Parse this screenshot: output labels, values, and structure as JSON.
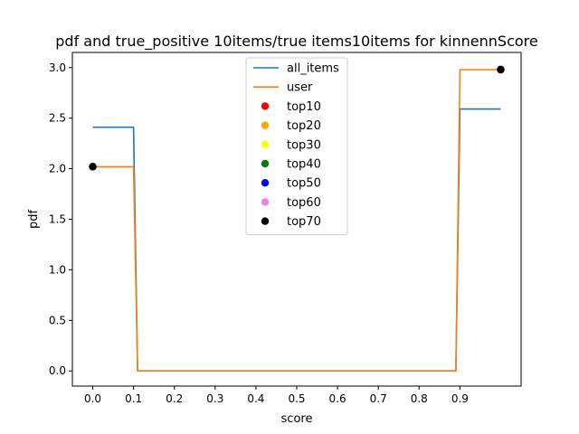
{
  "chart_data": {
    "type": "line",
    "title": "pdf and true_positive 10items/true items10items for kinnennScore",
    "xlabel": "score",
    "ylabel": "pdf",
    "xlim": [
      -0.05,
      1.05
    ],
    "ylim": [
      -0.15,
      3.15
    ],
    "xticks": [
      0.0,
      0.1,
      0.2,
      0.3,
      0.4,
      0.5,
      0.6,
      0.7,
      0.8,
      0.9
    ],
    "xtick_labels": [
      "0.0",
      "0.1",
      "0.2",
      "0.3",
      "0.4",
      "0.5",
      "0.6",
      "0.7",
      "0.8",
      "0.9"
    ],
    "yticks": [
      0.0,
      0.5,
      1.0,
      1.5,
      2.0,
      2.5,
      3.0
    ],
    "ytick_labels": [
      "0.0",
      "0.5",
      "1.0",
      "1.5",
      "2.0",
      "2.5",
      "3.0"
    ],
    "grid": false,
    "legend_position": "top-center",
    "series": [
      {
        "name": "all_items",
        "kind": "line",
        "color": "#1f77b4",
        "x": [
          0.0,
          0.1,
          0.11,
          0.89,
          0.9,
          1.0
        ],
        "y": [
          2.41,
          2.41,
          0.0,
          0.0,
          2.59,
          2.59
        ]
      },
      {
        "name": "user",
        "kind": "line",
        "color": "#ff7f0e",
        "x": [
          0.0,
          0.1,
          0.11,
          0.89,
          0.9,
          1.0
        ],
        "y": [
          2.02,
          2.02,
          0.0,
          0.0,
          2.98,
          2.98
        ]
      },
      {
        "name": "top10",
        "kind": "scatter",
        "color": "#ff0000",
        "x": [
          0.0,
          1.0
        ],
        "y": [
          2.02,
          2.98
        ]
      },
      {
        "name": "top20",
        "kind": "scatter",
        "color": "#ffa500",
        "x": [
          0.0,
          1.0
        ],
        "y": [
          2.02,
          2.98
        ]
      },
      {
        "name": "top30",
        "kind": "scatter",
        "color": "#ffff00",
        "x": [
          0.0,
          1.0
        ],
        "y": [
          2.02,
          2.98
        ]
      },
      {
        "name": "top40",
        "kind": "scatter",
        "color": "#008000",
        "x": [
          0.0,
          1.0
        ],
        "y": [
          2.02,
          2.98
        ]
      },
      {
        "name": "top50",
        "kind": "scatter",
        "color": "#0000ff",
        "x": [
          0.0,
          1.0
        ],
        "y": [
          2.02,
          2.98
        ]
      },
      {
        "name": "top60",
        "kind": "scatter",
        "color": "#ee82ee",
        "x": [
          0.0,
          1.0
        ],
        "y": [
          2.02,
          2.98
        ]
      },
      {
        "name": "top70",
        "kind": "scatter",
        "color": "#000000",
        "x": [
          0.0,
          1.0
        ],
        "y": [
          2.02,
          2.98
        ]
      }
    ]
  }
}
